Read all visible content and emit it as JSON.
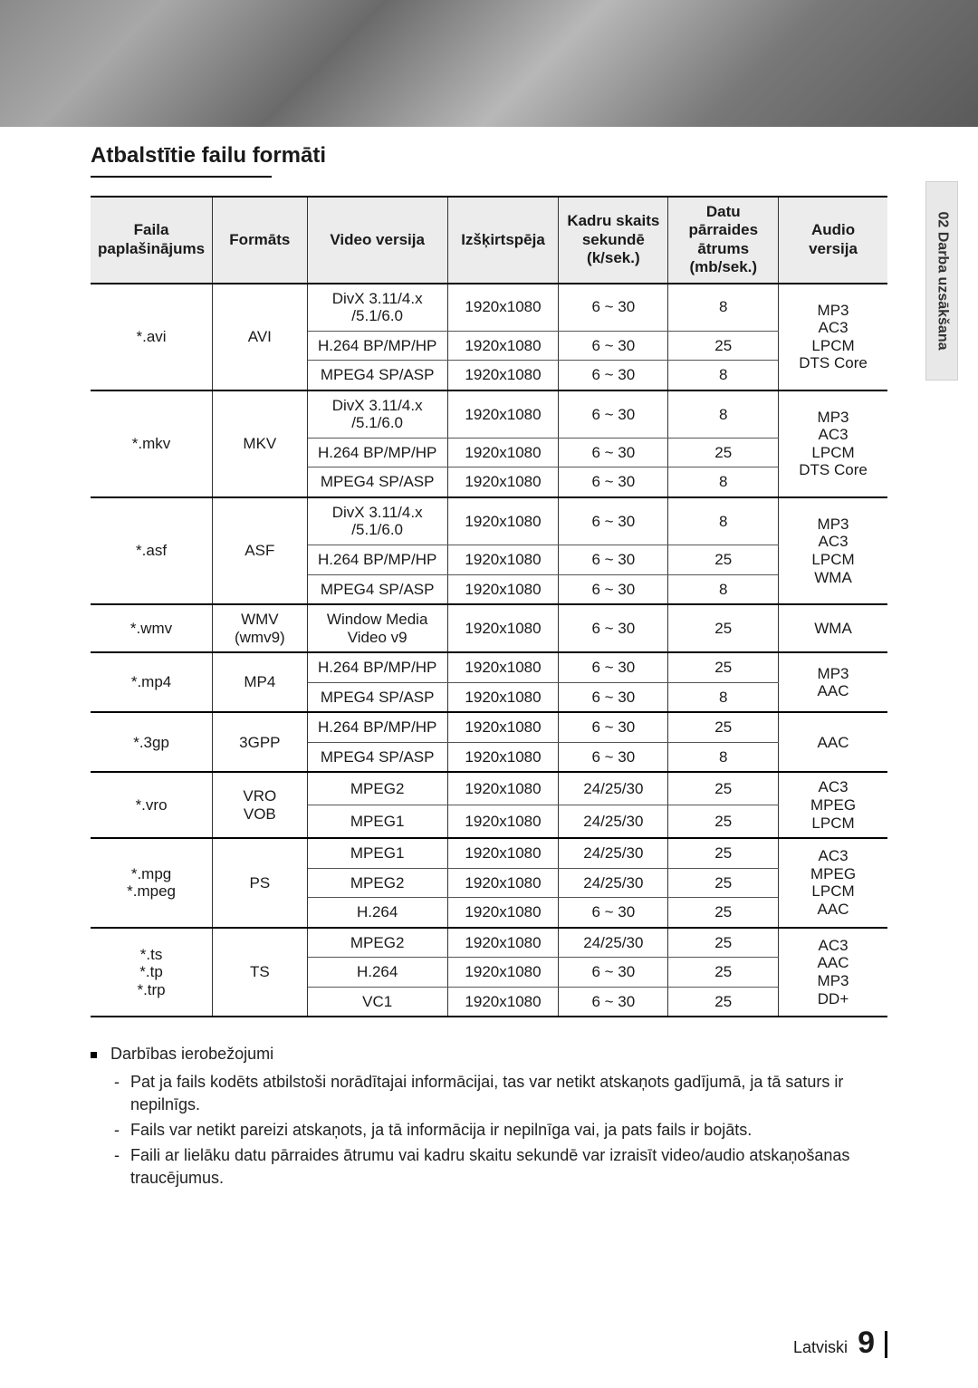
{
  "title": "Atbalstītie failu formāti",
  "columns": [
    "Faila\npaplašinājums",
    "Formāts",
    "Video versija",
    "Izšķirtspēja",
    "Kadru skaits\nsekundē (k/sek.)",
    "Datu pārraides\nātrums (mb/sek.)",
    "Audio versija"
  ],
  "col_widths": [
    "14%",
    "12%",
    "18%",
    "14%",
    "14%",
    "14%",
    "14%"
  ],
  "groups": [
    {
      "ext": "*.avi",
      "fmt": "AVI",
      "audio": "MP3\nAC3\nLPCM\nDTS Core",
      "rows": [
        {
          "video": "DivX 3.11/4.x\n/5.1/6.0",
          "res": "1920x1080",
          "fps": "6 ~ 30",
          "br": "8"
        },
        {
          "video": "H.264 BP/MP/HP",
          "res": "1920x1080",
          "fps": "6 ~ 30",
          "br": "25"
        },
        {
          "video": "MPEG4 SP/ASP",
          "res": "1920x1080",
          "fps": "6 ~ 30",
          "br": "8"
        }
      ]
    },
    {
      "ext": "*.mkv",
      "fmt": "MKV",
      "audio": "MP3\nAC3\nLPCM\nDTS Core",
      "rows": [
        {
          "video": "DivX 3.11/4.x\n/5.1/6.0",
          "res": "1920x1080",
          "fps": "6 ~ 30",
          "br": "8"
        },
        {
          "video": "H.264 BP/MP/HP",
          "res": "1920x1080",
          "fps": "6 ~ 30",
          "br": "25"
        },
        {
          "video": "MPEG4 SP/ASP",
          "res": "1920x1080",
          "fps": "6 ~ 30",
          "br": "8"
        }
      ]
    },
    {
      "ext": "*.asf",
      "fmt": "ASF",
      "audio": "MP3\nAC3\nLPCM\nWMA",
      "rows": [
        {
          "video": "DivX 3.11/4.x\n/5.1/6.0",
          "res": "1920x1080",
          "fps": "6 ~ 30",
          "br": "8"
        },
        {
          "video": "H.264 BP/MP/HP",
          "res": "1920x1080",
          "fps": "6 ~ 30",
          "br": "25"
        },
        {
          "video": "MPEG4 SP/ASP",
          "res": "1920x1080",
          "fps": "6 ~ 30",
          "br": "8"
        }
      ]
    },
    {
      "ext": "*.wmv",
      "fmt": "WMV (wmv9)",
      "audio": "WMA",
      "rows": [
        {
          "video": "Window Media\nVideo v9",
          "res": "1920x1080",
          "fps": "6 ~ 30",
          "br": "25"
        }
      ]
    },
    {
      "ext": "*.mp4",
      "fmt": "MP4",
      "audio": "MP3\nAAC",
      "rows": [
        {
          "video": "H.264 BP/MP/HP",
          "res": "1920x1080",
          "fps": "6 ~ 30",
          "br": "25"
        },
        {
          "video": "MPEG4 SP/ASP",
          "res": "1920x1080",
          "fps": "6 ~ 30",
          "br": "8"
        }
      ]
    },
    {
      "ext": "*.3gp",
      "fmt": "3GPP",
      "audio": "AAC",
      "rows": [
        {
          "video": "H.264 BP/MP/HP",
          "res": "1920x1080",
          "fps": "6 ~ 30",
          "br": "25"
        },
        {
          "video": "MPEG4 SP/ASP",
          "res": "1920x1080",
          "fps": "6 ~ 30",
          "br": "8"
        }
      ]
    },
    {
      "ext": "*.vro",
      "fmt": "VRO\nVOB",
      "audio": "AC3\nMPEG\nLPCM",
      "rows": [
        {
          "video": "MPEG2",
          "res": "1920x1080",
          "fps": "24/25/30",
          "br": "25"
        },
        {
          "video": "MPEG1",
          "res": "1920x1080",
          "fps": "24/25/30",
          "br": "25"
        }
      ]
    },
    {
      "ext": "*.mpg\n*.mpeg",
      "fmt": "PS",
      "audio": "AC3\nMPEG\nLPCM\nAAC",
      "rows": [
        {
          "video": "MPEG1",
          "res": "1920x1080",
          "fps": "24/25/30",
          "br": "25"
        },
        {
          "video": "MPEG2",
          "res": "1920x1080",
          "fps": "24/25/30",
          "br": "25"
        },
        {
          "video": "H.264",
          "res": "1920x1080",
          "fps": "6 ~ 30",
          "br": "25"
        }
      ]
    },
    {
      "ext": "*.ts\n*.tp\n*.trp",
      "fmt": "TS",
      "audio": "AC3\nAAC\nMP3\nDD+",
      "rows": [
        {
          "video": "MPEG2",
          "res": "1920x1080",
          "fps": "24/25/30",
          "br": "25"
        },
        {
          "video": "H.264",
          "res": "1920x1080",
          "fps": "6 ~ 30",
          "br": "25"
        },
        {
          "video": "VC1",
          "res": "1920x1080",
          "fps": "6 ~ 30",
          "br": "25"
        }
      ]
    }
  ],
  "notes_heading": "Darbības ierobežojumi",
  "notes": [
    "Pat ja fails kodēts atbilstoši norādītajai informācijai, tas var netikt atskaņots gadījumā, ja tā saturs ir nepilnīgs.",
    "Fails var netikt pareizi atskaņots, ja tā informācija ir nepilnīga vai, ja pats fails ir bojāts.",
    "Faili ar lielāku datu pārraides ātrumu vai kadru skaitu sekundē var izraisīt video/audio atskaņošanas traucējumus."
  ],
  "side_tab": "02   Darba uzsākšana",
  "footer_lang": "Latviski",
  "footer_page": "9"
}
